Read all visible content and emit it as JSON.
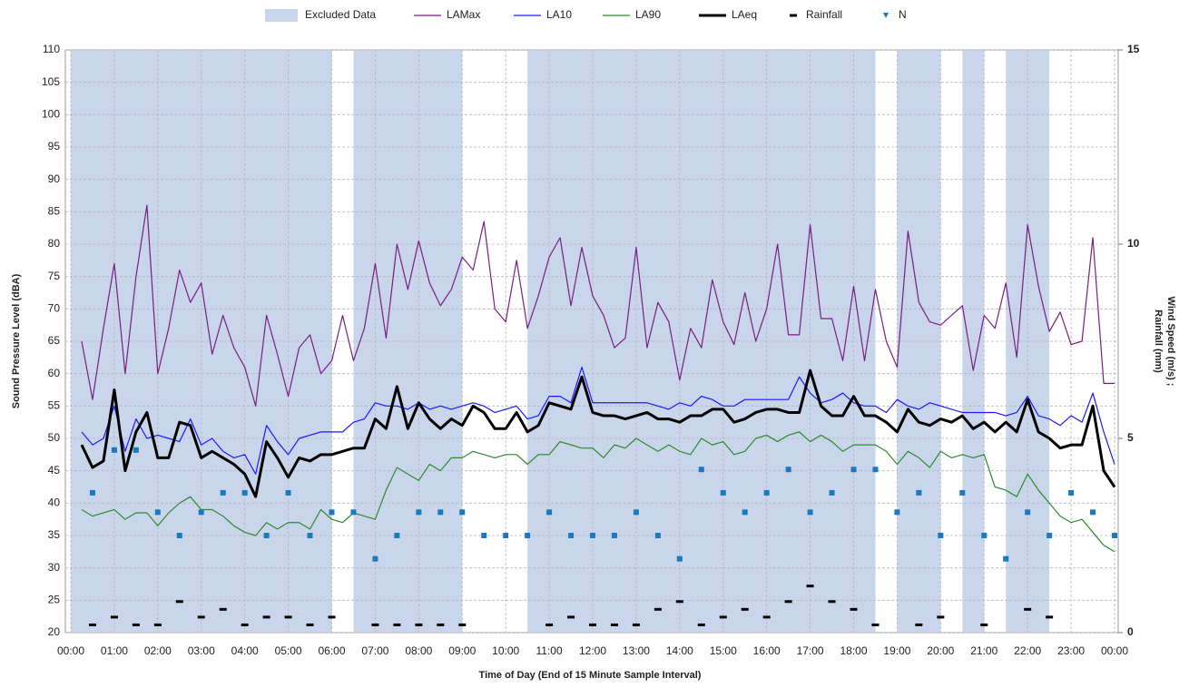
{
  "chart_data": {
    "type": "line",
    "xlabel": "Time of Day (End of 15 Minute Sample Interval)",
    "ylabel": "Sound Pressure Level (dBA)",
    "y2label": [
      "Wind Speed (m/s) ;",
      "Rainfall (mm)"
    ],
    "grid": true,
    "legend": "top",
    "xlim": [
      0,
      24
    ],
    "ylim": [
      20,
      110
    ],
    "y2lim": [
      0,
      15
    ],
    "yticks": [
      20,
      25,
      30,
      35,
      40,
      45,
      50,
      55,
      60,
      65,
      70,
      75,
      80,
      85,
      90,
      95,
      100,
      105,
      110
    ],
    "y2ticks": [
      0,
      5,
      10,
      15
    ],
    "xticks": [
      {
        "value": 0,
        "label": "00:00"
      },
      {
        "value": 1,
        "label": "01:00"
      },
      {
        "value": 2,
        "label": "02:00"
      },
      {
        "value": 3,
        "label": "03:00"
      },
      {
        "value": 4,
        "label": "04:00"
      },
      {
        "value": 5,
        "label": "05:00"
      },
      {
        "value": 6,
        "label": "06:00"
      },
      {
        "value": 7,
        "label": "07:00"
      },
      {
        "value": 8,
        "label": "08:00"
      },
      {
        "value": 9,
        "label": "09:00"
      },
      {
        "value": 10,
        "label": "10:00"
      },
      {
        "value": 11,
        "label": "11:00"
      },
      {
        "value": 12,
        "label": "12:00"
      },
      {
        "value": 13,
        "label": "13:00"
      },
      {
        "value": 14,
        "label": "14:00"
      },
      {
        "value": 15,
        "label": "15:00"
      },
      {
        "value": 16,
        "label": "16:00"
      },
      {
        "value": 17,
        "label": "17:00"
      },
      {
        "value": 18,
        "label": "18:00"
      },
      {
        "value": 19,
        "label": "19:00"
      },
      {
        "value": 20,
        "label": "20:00"
      },
      {
        "value": 21,
        "label": "21:00"
      },
      {
        "value": 22,
        "label": "22:00"
      },
      {
        "value": 23,
        "label": "23:00"
      },
      {
        "value": 24,
        "label": "00:00"
      }
    ],
    "x": [
      0.25,
      0.5,
      0.75,
      1,
      1.25,
      1.5,
      1.75,
      2,
      2.25,
      2.5,
      2.75,
      3,
      3.25,
      3.5,
      3.75,
      4,
      4.25,
      4.5,
      4.75,
      5,
      5.25,
      5.5,
      5.75,
      6,
      6.25,
      6.5,
      6.75,
      7,
      7.25,
      7.5,
      7.75,
      8,
      8.25,
      8.5,
      8.75,
      9,
      9.25,
      9.5,
      9.75,
      10,
      10.25,
      10.5,
      10.75,
      11,
      11.25,
      11.5,
      11.75,
      12,
      12.25,
      12.5,
      12.75,
      13,
      13.25,
      13.5,
      13.75,
      14,
      14.25,
      14.5,
      14.75,
      15,
      15.25,
      15.5,
      15.75,
      16,
      16.25,
      16.5,
      16.75,
      17,
      17.25,
      17.5,
      17.75,
      18,
      18.25,
      18.5,
      18.75,
      19,
      19.25,
      19.5,
      19.75,
      20,
      20.25,
      20.5,
      20.75,
      21,
      21.25,
      21.5,
      21.75,
      22,
      22.25,
      22.5,
      22.75,
      23,
      23.25,
      23.5,
      23.75,
      24
    ],
    "series": [
      {
        "name": "Excluded Data",
        "kind": "band",
        "color": "#c8d5eb",
        "ranges": [
          [
            0,
            6
          ],
          [
            6.5,
            9
          ],
          [
            10.5,
            18.5
          ],
          [
            19,
            20
          ],
          [
            20.5,
            21
          ],
          [
            21.5,
            22.5
          ]
        ]
      },
      {
        "name": "LAMax",
        "kind": "line",
        "color": "#7a1f80",
        "values": [
          65,
          56,
          67,
          77,
          60,
          75,
          86,
          60,
          67,
          76,
          71,
          74,
          63,
          69,
          64,
          61,
          55,
          69,
          63,
          56.5,
          64,
          66,
          60,
          62,
          69,
          62,
          67,
          77,
          65.5,
          80,
          73,
          80.5,
          74,
          70.5,
          73,
          78,
          76,
          83.5,
          70,
          68,
          77.5,
          67,
          72,
          78,
          81,
          70.5,
          79.5,
          72,
          69,
          64,
          65.5,
          79.5,
          64,
          71,
          68,
          59,
          67,
          64,
          74.5,
          68,
          64.5,
          72.5,
          65,
          70,
          80,
          66,
          66,
          83,
          68.5,
          68.5,
          62,
          73.5,
          62,
          73,
          65,
          61,
          82,
          71,
          68,
          67.5,
          69,
          70.5,
          60.5,
          69,
          67,
          74,
          62.5,
          83,
          73.5,
          66.5,
          69.5,
          64.5,
          65,
          81,
          58.5,
          58.5
        ]
      },
      {
        "name": "LA10",
        "kind": "line",
        "color": "#1a1aff",
        "values": [
          51,
          49,
          50,
          55,
          48,
          53,
          50,
          50.5,
          50,
          49.5,
          53,
          49,
          50,
          48,
          47,
          47.5,
          44.5,
          52,
          49.5,
          47.5,
          50,
          50.5,
          51,
          51,
          51,
          52.5,
          53,
          55.5,
          55,
          55,
          54.5,
          55.5,
          54.5,
          55,
          54.5,
          55,
          55.5,
          55,
          54,
          54.5,
          55,
          53,
          53.5,
          56.5,
          56.5,
          55.5,
          61,
          55.5,
          55.5,
          55.5,
          55.5,
          55.5,
          55.5,
          55,
          54.5,
          55.5,
          55,
          56.5,
          56,
          55,
          55,
          56,
          56,
          56,
          56,
          56,
          59.5,
          57,
          55.5,
          56,
          57,
          55.5,
          55,
          55,
          54,
          56,
          55,
          54.5,
          55.5,
          55,
          54.5,
          54,
          54,
          54,
          54,
          53.5,
          54,
          56.5,
          53.5,
          53,
          52,
          53.5,
          52.5,
          57,
          51,
          46
        ]
      },
      {
        "name": "LA90",
        "kind": "line",
        "color": "#2e8b2e",
        "values": [
          39,
          38,
          38.5,
          39,
          37.5,
          38.5,
          38.5,
          36.5,
          38.5,
          40,
          41,
          39,
          39,
          38,
          36.5,
          35.5,
          35,
          37,
          36,
          37,
          37,
          36,
          39,
          37.5,
          37,
          38.5,
          38,
          37.5,
          42,
          45.5,
          44.5,
          43.5,
          46,
          45,
          47,
          47,
          48,
          47.5,
          47,
          47.5,
          47.5,
          46,
          47.5,
          47.5,
          49.5,
          49,
          48.5,
          48.5,
          47,
          49,
          48.5,
          50,
          49,
          48,
          49,
          48,
          47.5,
          50,
          49,
          49.5,
          47.5,
          48,
          50,
          50.5,
          49.5,
          50.5,
          51,
          49.5,
          50.5,
          49.5,
          48,
          49,
          49,
          49,
          48,
          46,
          48,
          47,
          45.5,
          48,
          47,
          47.5,
          47,
          47.5,
          42.5,
          42,
          41,
          44.5,
          42,
          40,
          38,
          37,
          37.5,
          35.5,
          33.5,
          32.5
        ]
      },
      {
        "name": "LAeq",
        "kind": "line",
        "color": "#000000",
        "width": 3,
        "values": [
          49,
          45.5,
          46.5,
          57.5,
          45,
          51,
          54,
          47,
          47,
          52.5,
          52,
          47,
          48,
          47,
          46,
          44.5,
          41,
          49.5,
          47,
          44,
          47,
          46.5,
          47.5,
          47.5,
          48,
          48.5,
          48.5,
          53,
          51.5,
          58,
          51.5,
          55.5,
          53,
          51.5,
          53,
          52,
          55,
          54,
          51.5,
          51.5,
          54,
          51,
          52,
          55.5,
          55,
          54.5,
          59.5,
          54,
          53.5,
          53.5,
          53,
          53.5,
          54,
          53,
          53,
          52.5,
          53.5,
          53.5,
          54.5,
          54.5,
          52.5,
          53,
          54,
          54.5,
          54.5,
          54,
          54,
          60.5,
          55,
          53.5,
          53.5,
          56.5,
          53.5,
          53.5,
          52.5,
          51,
          54.5,
          52.5,
          52,
          53,
          52.5,
          53.5,
          51.5,
          52.5,
          51,
          52.5,
          51,
          56,
          51,
          50,
          48.5,
          49,
          49,
          55,
          45,
          42.5
        ]
      },
      {
        "name": "Rainfall",
        "kind": "dash",
        "color": "#000000",
        "axis": "y2",
        "x": [
          0.5,
          1,
          1.5,
          2,
          2.5,
          3,
          3.5,
          4,
          4.5,
          5,
          5.5,
          6,
          6.5,
          7,
          7.5,
          8,
          8.5,
          9,
          9.5,
          10,
          10.5,
          11,
          11.5,
          12,
          12.5,
          13,
          13.5,
          14,
          14.5,
          15,
          15.5,
          16,
          16.5,
          17,
          17.5,
          18,
          18.5,
          19,
          19.5,
          20,
          20.5,
          21,
          21.5,
          22,
          22.5,
          23,
          23.5,
          24
        ],
        "values": [
          0.2,
          0.4,
          0.2,
          0.2,
          0.8,
          0.4,
          0.6,
          0.2,
          0.4,
          0.4,
          0.2,
          0.4,
          null,
          0.2,
          0.2,
          0.2,
          0.2,
          0.2,
          null,
          null,
          null,
          0.2,
          0.4,
          0.2,
          0.2,
          0.2,
          0.6,
          0.8,
          0.2,
          0.4,
          0.6,
          0.4,
          0.8,
          1.2,
          0.8,
          0.6,
          0.2,
          null,
          0.2,
          0.4,
          null,
          0.2,
          null,
          0.6,
          0.4,
          null,
          null,
          null
        ]
      },
      {
        "name": "N",
        "kind": "square",
        "color": "#1a7abf",
        "axis": "y2",
        "x": [
          0.5,
          1,
          1.5,
          2,
          2.5,
          3,
          3.5,
          4,
          4.5,
          5,
          5.5,
          6,
          6.5,
          7,
          7.5,
          8,
          8.5,
          9,
          9.5,
          10,
          10.5,
          11,
          11.5,
          12,
          12.5,
          13,
          13.5,
          14,
          14.5,
          15,
          15.5,
          16,
          16.5,
          17,
          17.5,
          18,
          18.5,
          19,
          19.5,
          20,
          20.5,
          21,
          21.5,
          22,
          22.5,
          23,
          23.5,
          24
        ],
        "values": [
          3.6,
          4.7,
          4.7,
          3.1,
          2.5,
          3.1,
          3.6,
          3.6,
          2.5,
          3.6,
          2.5,
          3.1,
          3.1,
          1.9,
          2.5,
          3.1,
          3.1,
          3.1,
          2.5,
          2.5,
          2.5,
          3.1,
          2.5,
          2.5,
          2.5,
          3.1,
          2.5,
          1.9,
          4.2,
          3.6,
          3.1,
          3.6,
          4.2,
          3.1,
          3.6,
          4.2,
          4.2,
          3.1,
          3.6,
          2.5,
          3.6,
          2.5,
          1.9,
          3.1,
          2.5,
          3.6,
          3.1,
          2.5
        ]
      }
    ]
  }
}
